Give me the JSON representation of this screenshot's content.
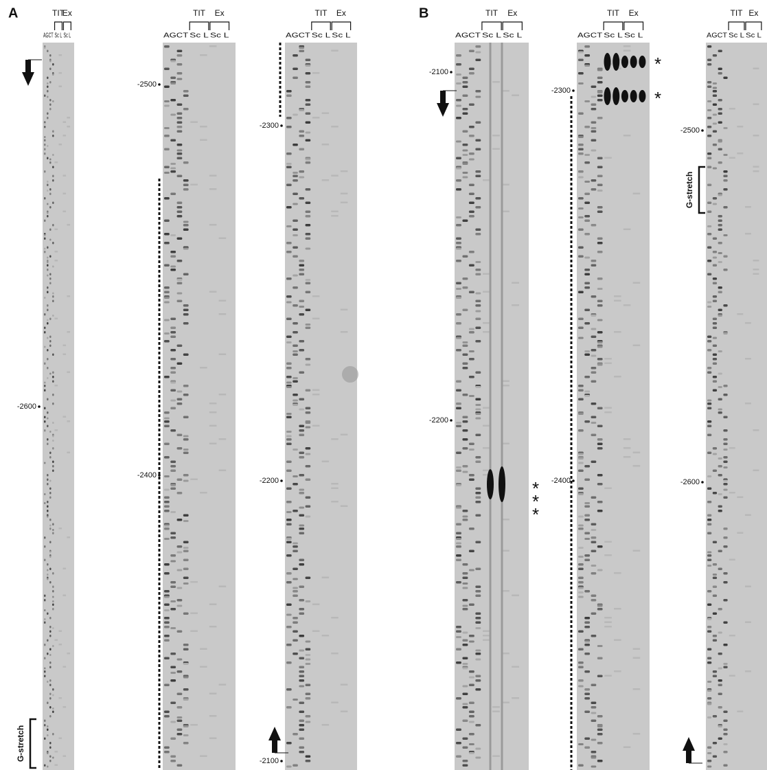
{
  "panels": [
    {
      "label": "A",
      "gels": [
        {
          "header": {
            "groups": [
              "TIT",
              "Ex"
            ],
            "lanes": [
              "AGCT",
              "Sc L",
              "Sc L"
            ]
          },
          "markers": [
            "-2600"
          ],
          "notes": [
            "G-stretch"
          ]
        },
        {
          "header": {
            "groups": [
              "TIT",
              "Ex"
            ],
            "lanes": [
              "AGCT",
              "Sc L",
              "Sc L"
            ]
          },
          "markers": [
            "-2500",
            "-2400"
          ]
        },
        {
          "header": {
            "groups": [
              "TIT",
              "Ex"
            ],
            "lanes": [
              "AGCT",
              "Sc L",
              "Sc L"
            ]
          },
          "markers": [
            "-2300",
            "-2200",
            "-2100"
          ]
        }
      ]
    },
    {
      "label": "B",
      "gels": [
        {
          "header": {
            "groups": [
              "TIT",
              "Ex"
            ],
            "lanes": [
              "AGCT",
              "Sc L",
              "Sc L"
            ]
          },
          "markers": [
            "-2100",
            "-2200"
          ],
          "notes": [
            "*",
            "*",
            "*"
          ]
        },
        {
          "header": {
            "groups": [
              "TIT",
              "Ex"
            ],
            "lanes": [
              "AGCT",
              "Sc L",
              "Sc L"
            ]
          },
          "markers": [
            "-2300",
            "-2400"
          ],
          "notes": [
            "*",
            "*"
          ]
        },
        {
          "header": {
            "groups": [
              "TIT",
              "Ex"
            ],
            "lanes": [
              "AGCT",
              "Sc L",
              "Sc L"
            ]
          },
          "markers": [
            "-2500",
            "-2600"
          ],
          "notes": [
            "G-stretch"
          ]
        }
      ]
    }
  ]
}
